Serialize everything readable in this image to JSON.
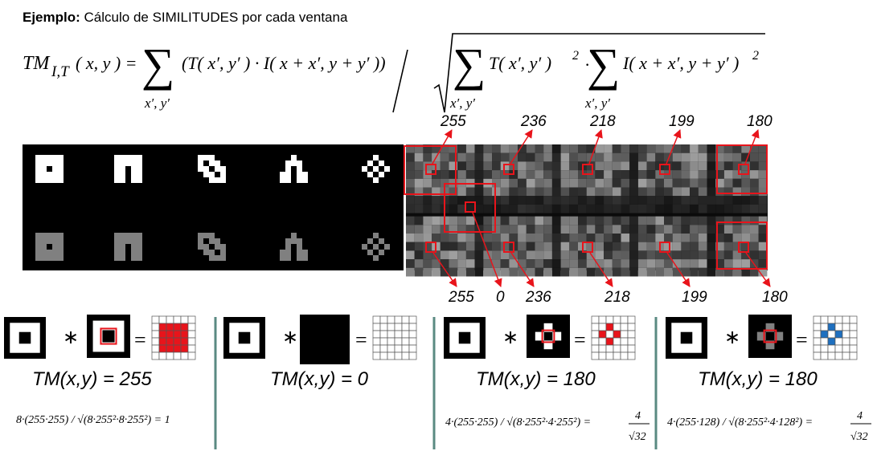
{
  "title": {
    "bold": "Ejemplo:",
    "rest": " Cálculo de SIMILITUDES por cada ventana"
  },
  "formula": {
    "lhs": "TM",
    "lhs_sub": "I,T",
    "lhs_args": "( x, y ) =",
    "sum1_under": "x′, y′",
    "term1": "(T( x′, y′ ) · I( x + x′, y + y′ ))",
    "sum2_under": "x′, y′",
    "term2": "T( x′, y′ )",
    "sup2": "2",
    "dot": "·",
    "sum3_under": "x′, y′",
    "term3": "I( x + x′, y + y′ )",
    "sup3": "2"
  },
  "top_values": [
    "255",
    "236",
    "218",
    "199",
    "180"
  ],
  "bottom_values": [
    "255",
    "0",
    "236",
    "218",
    "199",
    "180"
  ],
  "panels": [
    {
      "op": "∗",
      "eq": "=",
      "tm": "TM(x,y) = 255",
      "calc": "8·(255·255) / √(8·255²·8·255²) = 1"
    },
    {
      "op": "∗",
      "eq": "=",
      "tm": "TM(x,y) = 0",
      "calc": ""
    },
    {
      "op": "∗",
      "eq": "=",
      "tm": "TM(x,y) = 180",
      "calc": "4·(255·255) / √(8·255²·4·255²) =",
      "frac_num": "4",
      "frac_den": "√32"
    },
    {
      "op": "∗",
      "eq": "=",
      "tm": "TM(x,y) = 180",
      "calc": "4·(255·128) / √(8·255²·4·128²) =",
      "frac_num": "4",
      "frac_den": "√32"
    }
  ],
  "colors": {
    "red": "#e8141b",
    "blue": "#1e6fbf",
    "divider": "#5a8a82",
    "gray": "#808080"
  }
}
